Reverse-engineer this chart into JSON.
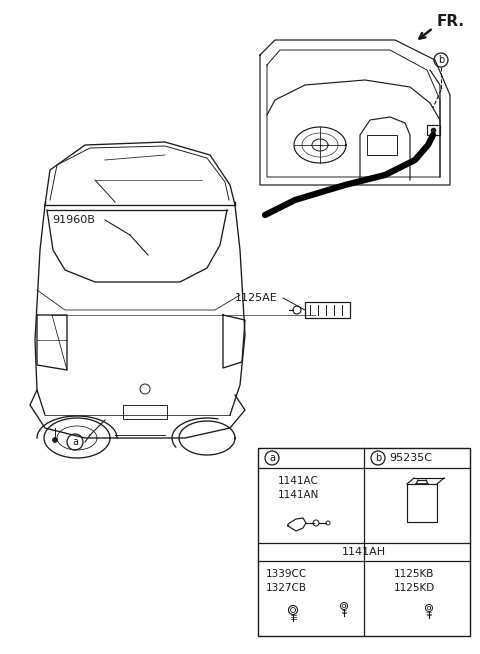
{
  "bg_color": "#ffffff",
  "line_color": "#1a1a1a",
  "label_91960B": "91960B",
  "label_1125AE": "1125AE",
  "label_95235C": "95235C",
  "label_1141AC_AN": "1141AC\n1141AN",
  "label_1141AH": "1141AH",
  "label_1339CC_1327CB": "1339CC\n1327CB",
  "label_1125KB_KD": "1125KB\n1125KD",
  "label_a": "a",
  "label_b": "b",
  "label_FR": "FR.",
  "fig_width": 4.8,
  "fig_height": 6.54,
  "dpi": 100
}
